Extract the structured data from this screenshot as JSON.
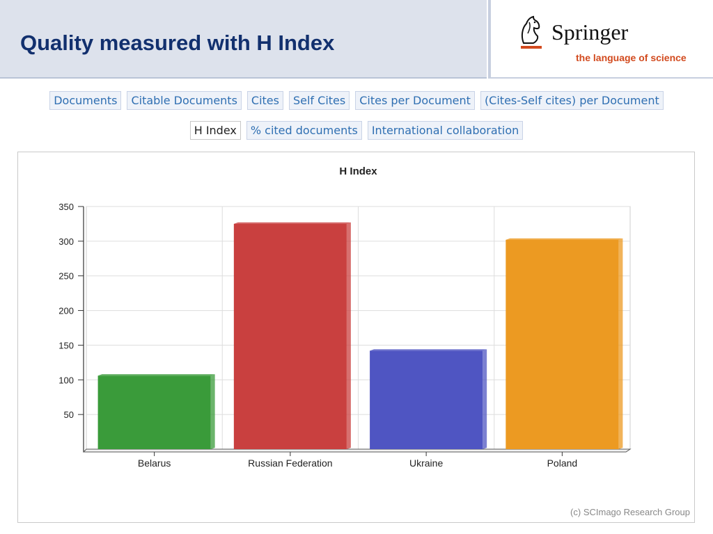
{
  "header": {
    "title": "Quality measured with H Index",
    "brand_name": "Springer",
    "brand_tagline": "the language of science"
  },
  "tabs": {
    "row1": [
      "Documents",
      "Citable Documents",
      "Cites",
      "Self Cites",
      "Cites per Document",
      "(Cites-Self cites) per Document"
    ],
    "row2": [
      "H Index",
      "% cited documents",
      "International collaboration"
    ],
    "active": "H Index"
  },
  "chart_data": {
    "type": "bar",
    "title": "H Index",
    "categories": [
      "Belarus",
      "Russian Federation",
      "Ukraine",
      "Poland"
    ],
    "values": [
      106,
      325,
      142,
      302
    ],
    "colors": [
      "#3a9b3a",
      "#c9403f",
      "#4f55c2",
      "#ec9a22"
    ],
    "ylim": [
      0,
      350
    ],
    "yticks": [
      50,
      100,
      150,
      200,
      250,
      300,
      350
    ],
    "grid": true,
    "xlabel": "",
    "ylabel": ""
  },
  "credit": "(c) SCImago Research Group",
  "colors": {
    "title": "#12306e",
    "tab_text": "#2f6fb2",
    "tagline": "#d24a1e"
  }
}
